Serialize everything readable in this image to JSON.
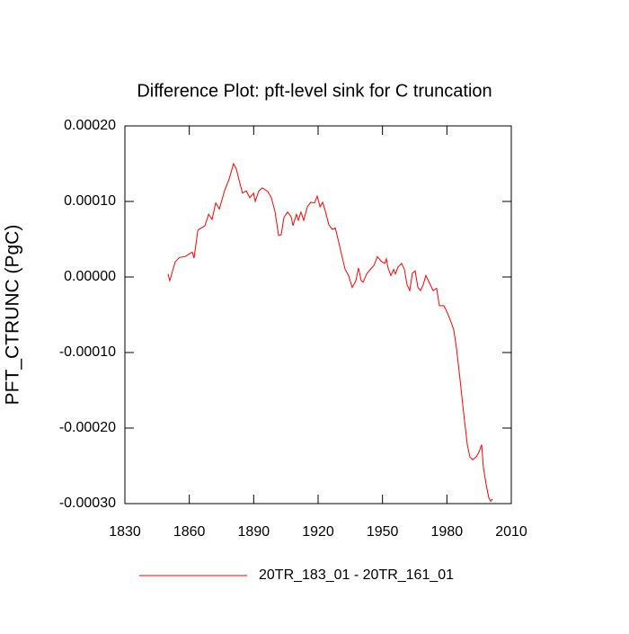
{
  "chart_data": {
    "type": "line",
    "title": "Difference Plot: pft-level sink for C truncation",
    "y_label": "PFT_CTRUNC  (PgC)",
    "xlim": [
      1830,
      2010
    ],
    "xticks": [
      1830,
      1860,
      1890,
      1920,
      1950,
      1980,
      2010
    ],
    "ylim": [
      -0.0003,
      0.0002
    ],
    "yticks": [
      {
        "value": -0.0003,
        "label": "-0.00030"
      },
      {
        "value": -0.0002,
        "label": "-0.00020"
      },
      {
        "value": -0.0001,
        "label": "-0.00010"
      },
      {
        "value": 0,
        "label": "0.00000"
      },
      {
        "value": 0.0001,
        "label": "0.00010"
      },
      {
        "value": 0.0002,
        "label": "0.00020"
      }
    ],
    "legend_position": "bottom",
    "x": [
      1850.1,
      1850.9,
      1853.4,
      1855.5,
      1858.0,
      1859.7,
      1861.4,
      1862.2,
      1864.0,
      1867.3,
      1869.0,
      1870.6,
      1872.3,
      1874.0,
      1876.5,
      1878.6,
      1880.6,
      1881.9,
      1883.2,
      1884.8,
      1886.5,
      1888.2,
      1889.9,
      1890.7,
      1892.4,
      1894.0,
      1896.6,
      1898.2,
      1899.9,
      1901.6,
      1902.8,
      1904.1,
      1905.8,
      1907.4,
      1908.3,
      1909.9,
      1910.8,
      1912.0,
      1913.3,
      1915.0,
      1916.6,
      1918.3,
      1919.6,
      1920.9,
      1922.1,
      1923.4,
      1925.0,
      1926.7,
      1928.0,
      1929.2,
      1930.9,
      1932.6,
      1934.2,
      1935.9,
      1937.6,
      1938.8,
      1940.1,
      1941.0,
      1942.6,
      1944.3,
      1946.0,
      1947.6,
      1949.3,
      1951.0,
      1951.8,
      1952.6,
      1953.9,
      1955.2,
      1956.0,
      1957.2,
      1958.9,
      1960.2,
      1961.4,
      1962.7,
      1963.9,
      1965.2,
      1966.5,
      1967.7,
      1969.0,
      1970.2,
      1971.9,
      1973.6,
      1975.2,
      1976.5,
      1978.6,
      1980.3,
      1982.0,
      1983.2,
      1984.5,
      1986.1,
      1987.8,
      1989.5,
      1990.7,
      1992.0,
      1993.7,
      1994.9,
      1996.2,
      1997.0,
      1998.3,
      1999.5,
      2000.4,
      2001.2
    ],
    "series": [
      {
        "name": "20TR_183_01 - 20TR_161_01",
        "color": "#ff0000",
        "values": [
          4e-06,
          -5e-06,
          2e-05,
          2.6e-05,
          2.7e-05,
          3e-05,
          3.3e-05,
          2.5e-05,
          6.2e-05,
          6.8e-05,
          8.3e-05,
          7.6e-05,
          9.8e-05,
          9e-05,
          0.000115,
          0.00013,
          0.00015,
          0.000143,
          0.000128,
          0.000111,
          0.000114,
          0.000105,
          0.000111,
          0.0001,
          0.000114,
          0.000118,
          0.000113,
          0.000105,
          8.7e-05,
          5.5e-05,
          5.6e-05,
          7.9e-05,
          8.6e-05,
          8e-05,
          6.8e-05,
          8.3e-05,
          7.5e-05,
          8.6e-05,
          7.5e-05,
          9.3e-05,
          9.9e-05,
          9.8e-05,
          0.000107,
          9.3e-05,
          9.9e-05,
          8.7e-05,
          6.9e-05,
          6.3e-05,
          6.5e-05,
          5.1e-05,
          3e-05,
          1e-05,
          2e-06,
          -1.4e-05,
          -5e-06,
          1.2e-05,
          -5e-06,
          -7e-06,
          4e-06,
          1e-05,
          1.5e-05,
          2.7e-05,
          2.1e-05,
          1.8e-05,
          2.4e-05,
          1.2e-05,
          2e-06,
          1e-05,
          4e-06,
          1.3e-05,
          1.8e-05,
          1e-05,
          -1e-05,
          -1.8e-05,
          5e-06,
          8e-06,
          -1.4e-05,
          -1.8e-05,
          -1e-05,
          2e-06,
          -8e-06,
          -1.8e-05,
          -1.5e-05,
          -3.8e-05,
          -3.8e-05,
          -4.8e-05,
          -6e-05,
          -7e-05,
          -9.5e-05,
          -0.000135,
          -0.00018,
          -0.000222,
          -0.000238,
          -0.000242,
          -0.000238,
          -0.000232,
          -0.000222,
          -0.000252,
          -0.000275,
          -0.000292,
          -0.000297,
          -0.000294
        ]
      }
    ]
  }
}
